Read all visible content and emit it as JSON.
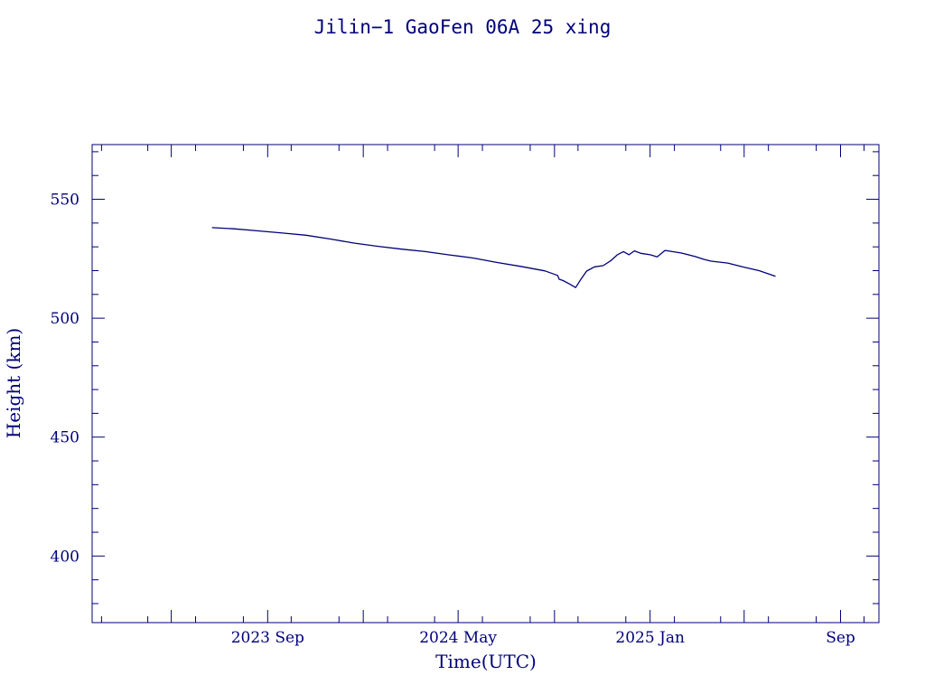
{
  "chart_data": {
    "type": "line",
    "title": "Jilin−1 GaoFen 06A 25 xing",
    "xlabel": "Time(UTC)",
    "ylabel": "Height (km)",
    "x_ticks": [
      "2023 Sep",
      "2024 May",
      "2025 Jan",
      "Sep"
    ],
    "y_ticks": [
      400,
      450,
      500,
      550
    ],
    "xlim": [
      "2023-01-20",
      "2025-10-20"
    ],
    "ylim": [
      372,
      573
    ],
    "grid": false,
    "series": [
      {
        "color": "#00007a",
        "x": [
          "2023-06-22",
          "2023-07-20",
          "2023-08-20",
          "2023-09-20",
          "2023-10-20",
          "2023-11-20",
          "2023-12-20",
          "2024-01-20",
          "2024-02-20",
          "2024-03-20",
          "2024-04-20",
          "2024-05-20",
          "2024-06-20",
          "2024-07-20",
          "2024-08-20",
          "2024-09-05",
          "2024-09-07",
          "2024-09-12",
          "2024-09-20",
          "2024-09-28",
          "2024-10-05",
          "2024-10-12",
          "2024-10-22",
          "2024-11-02",
          "2024-11-12",
          "2024-11-20",
          "2024-11-28",
          "2024-12-05",
          "2024-12-12",
          "2024-12-20",
          "2025-01-01",
          "2025-01-10",
          "2025-01-20",
          "2025-02-10",
          "2025-02-28",
          "2025-03-10",
          "2025-03-20",
          "2025-04-10",
          "2025-04-30",
          "2025-05-20",
          "2025-06-10"
        ],
        "values": [
          538.1,
          537.6,
          536.7,
          535.8,
          534.9,
          533.3,
          531.6,
          530.2,
          529.0,
          528.0,
          526.6,
          525.3,
          523.4,
          521.8,
          519.9,
          518.0,
          516.4,
          515.8,
          514.4,
          512.9,
          516.5,
          519.8,
          521.6,
          522.1,
          524.2,
          526.6,
          528.0,
          526.7,
          528.3,
          527.3,
          526.7,
          525.8,
          528.5,
          527.4,
          525.9,
          524.8,
          524.0,
          523.2,
          521.5,
          520.0,
          517.6
        ]
      }
    ]
  }
}
